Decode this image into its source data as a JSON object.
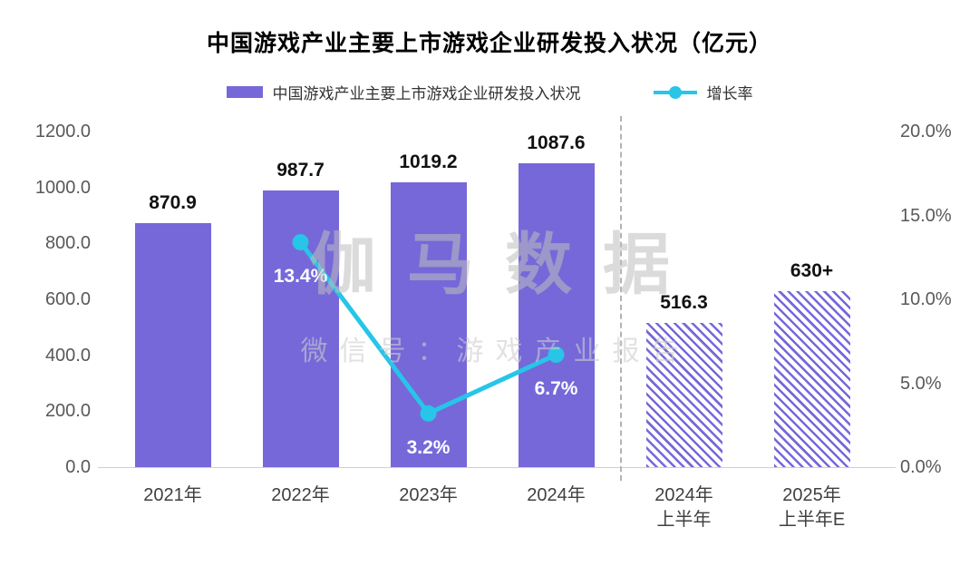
{
  "title": "中国游戏产业主要上市游戏企业研发投入状况（亿元）",
  "colors": {
    "bar": "#7668D9",
    "line": "#27C5E8"
  },
  "legend": [
    {
      "label": "中国游戏产业主要上市游戏企业研发投入状况",
      "type": "bar"
    },
    {
      "label": "增长率",
      "type": "line"
    }
  ],
  "watermark": {
    "line1": "伽马数据",
    "line2": "微信号：游戏产业报告"
  },
  "chart_data": {
    "type": "combo",
    "title": "中国游戏产业主要上市游戏企业研发投入状况（亿元）",
    "categories": [
      "2021年",
      "2022年",
      "2023年",
      "2024年",
      "2024年\n上半年",
      "2025年\n上半年E"
    ],
    "series": [
      {
        "name": "中国游戏产业主要上市游戏企业研发投入状况",
        "kind": "bar",
        "values": [
          870.9,
          987.7,
          1019.2,
          1087.6,
          516.3,
          630
        ],
        "labels": [
          "870.9",
          "987.7",
          "1019.2",
          "1087.6",
          "516.3",
          "630+"
        ],
        "hatched": [
          false,
          false,
          false,
          false,
          true,
          true
        ]
      },
      {
        "name": "增长率",
        "kind": "line",
        "values": [
          null,
          13.4,
          3.2,
          6.7,
          null,
          null
        ],
        "labels": [
          null,
          "13.4%",
          "3.2%",
          "6.7%",
          null,
          null
        ]
      }
    ],
    "left_axis": {
      "min": 0,
      "max": 1200,
      "step": 200,
      "tick_labels": [
        "1200.0",
        "1000.0",
        "800.0",
        "600.0",
        "400.0",
        "200.0",
        "0.0"
      ]
    },
    "right_axis": {
      "min": 0,
      "max": 20,
      "step": 5,
      "tick_labels": [
        "20.0%",
        "15.0%",
        "10.0%",
        "5.0%",
        "0.0%"
      ]
    },
    "separator_after_index": 3,
    "grid": false,
    "legend_position": "top"
  }
}
